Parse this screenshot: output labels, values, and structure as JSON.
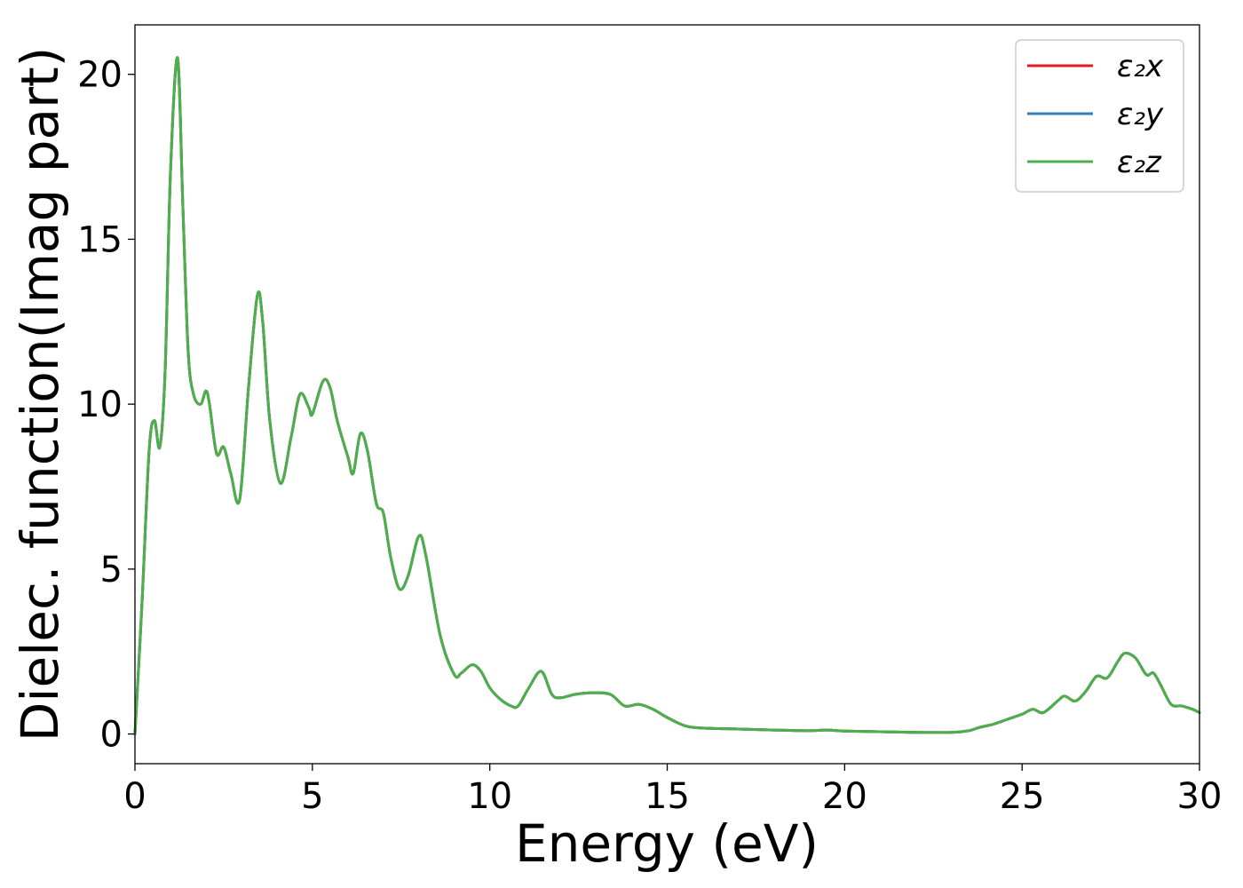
{
  "chart_data": {
    "type": "line",
    "title": "",
    "xlabel": "Energy (eV)",
    "ylabel": "Dielec. function(Imag part)",
    "xlim": [
      0,
      30
    ],
    "ylim": [
      -0.9,
      21.5
    ],
    "xticks": [
      0,
      5,
      10,
      15,
      20,
      25,
      30
    ],
    "yticks": [
      0,
      5,
      10,
      15,
      20
    ],
    "grid": false,
    "legend_position": "top-right",
    "x": [
      0,
      0.2,
      0.4,
      0.55,
      0.7,
      0.85,
      1.0,
      1.2,
      1.35,
      1.5,
      1.65,
      1.85,
      2.0,
      2.1,
      2.3,
      2.5,
      2.7,
      2.95,
      3.2,
      3.45,
      3.6,
      3.8,
      4.1,
      4.4,
      4.65,
      4.9,
      5.0,
      5.3,
      5.5,
      5.7,
      6.0,
      6.15,
      6.35,
      6.55,
      6.8,
      7.0,
      7.2,
      7.45,
      7.7,
      8.0,
      8.2,
      8.6,
      9.0,
      9.2,
      9.5,
      9.75,
      10.0,
      10.3,
      10.6,
      10.8,
      11.1,
      11.45,
      11.75,
      12.0,
      12.4,
      12.9,
      13.4,
      13.8,
      14.2,
      14.6,
      15.0,
      15.5,
      16.0,
      17.0,
      18.0,
      19.0,
      19.5,
      20.0,
      21.0,
      22.0,
      23.0,
      23.5,
      23.8,
      24.2,
      24.6,
      25.0,
      25.3,
      25.6,
      26.0,
      26.2,
      26.5,
      26.8,
      27.1,
      27.4,
      27.7,
      27.9,
      28.2,
      28.5,
      28.7,
      28.9,
      29.2,
      29.5,
      29.8,
      30.0
    ],
    "series": [
      {
        "name": "ε₂x",
        "color": "#e41a1c",
        "values": [
          0.0,
          4.0,
          8.6,
          9.5,
          8.7,
          11.0,
          17.0,
          20.5,
          16.0,
          11.6,
          10.3,
          10.0,
          10.4,
          10.0,
          8.5,
          8.7,
          7.9,
          7.1,
          10.5,
          13.3,
          12.5,
          9.5,
          7.6,
          9.0,
          10.3,
          9.9,
          9.7,
          10.7,
          10.5,
          9.5,
          8.4,
          7.9,
          9.1,
          8.6,
          7.0,
          6.7,
          5.4,
          4.4,
          4.8,
          6.0,
          5.4,
          3.0,
          1.8,
          1.85,
          2.1,
          1.9,
          1.4,
          1.05,
          0.85,
          0.85,
          1.4,
          1.9,
          1.2,
          1.1,
          1.2,
          1.25,
          1.2,
          0.85,
          0.9,
          0.75,
          0.5,
          0.25,
          0.18,
          0.15,
          0.12,
          0.1,
          0.12,
          0.09,
          0.07,
          0.05,
          0.05,
          0.1,
          0.2,
          0.3,
          0.45,
          0.6,
          0.75,
          0.65,
          1.0,
          1.15,
          1.0,
          1.3,
          1.75,
          1.7,
          2.2,
          2.45,
          2.3,
          1.8,
          1.85,
          1.5,
          0.9,
          0.85,
          0.75,
          0.65
        ]
      },
      {
        "name": "ε₂y",
        "color": "#377eb8",
        "values": [
          0.0,
          4.0,
          8.6,
          9.5,
          8.7,
          11.0,
          17.0,
          20.5,
          16.0,
          11.6,
          10.3,
          10.0,
          10.4,
          10.0,
          8.5,
          8.7,
          7.9,
          7.1,
          10.5,
          13.3,
          12.5,
          9.5,
          7.6,
          9.0,
          10.3,
          9.9,
          9.7,
          10.7,
          10.5,
          9.5,
          8.4,
          7.9,
          9.1,
          8.6,
          7.0,
          6.7,
          5.4,
          4.4,
          4.8,
          6.0,
          5.4,
          3.0,
          1.8,
          1.85,
          2.1,
          1.9,
          1.4,
          1.05,
          0.85,
          0.85,
          1.4,
          1.9,
          1.2,
          1.1,
          1.2,
          1.25,
          1.2,
          0.85,
          0.9,
          0.75,
          0.5,
          0.25,
          0.18,
          0.15,
          0.12,
          0.1,
          0.12,
          0.09,
          0.07,
          0.05,
          0.05,
          0.1,
          0.2,
          0.3,
          0.45,
          0.6,
          0.75,
          0.65,
          1.0,
          1.15,
          1.0,
          1.3,
          1.75,
          1.7,
          2.2,
          2.45,
          2.3,
          1.8,
          1.85,
          1.5,
          0.9,
          0.85,
          0.75,
          0.65
        ]
      },
      {
        "name": "ε₂z",
        "color": "#4daf4a",
        "values": [
          0.0,
          4.0,
          8.6,
          9.5,
          8.7,
          11.0,
          17.0,
          20.5,
          16.0,
          11.6,
          10.3,
          10.0,
          10.4,
          10.0,
          8.5,
          8.7,
          7.9,
          7.1,
          10.5,
          13.3,
          12.5,
          9.5,
          7.6,
          9.0,
          10.3,
          9.9,
          9.7,
          10.7,
          10.5,
          9.5,
          8.4,
          7.9,
          9.1,
          8.6,
          7.0,
          6.7,
          5.4,
          4.4,
          4.8,
          6.0,
          5.4,
          3.0,
          1.8,
          1.85,
          2.1,
          1.9,
          1.4,
          1.05,
          0.85,
          0.85,
          1.4,
          1.9,
          1.2,
          1.1,
          1.2,
          1.25,
          1.2,
          0.85,
          0.9,
          0.75,
          0.5,
          0.25,
          0.18,
          0.15,
          0.12,
          0.1,
          0.12,
          0.09,
          0.07,
          0.05,
          0.05,
          0.1,
          0.2,
          0.3,
          0.45,
          0.6,
          0.75,
          0.65,
          1.0,
          1.15,
          1.0,
          1.3,
          1.75,
          1.7,
          2.2,
          2.45,
          2.3,
          1.8,
          1.85,
          1.5,
          0.9,
          0.85,
          0.75,
          0.65
        ]
      }
    ]
  }
}
